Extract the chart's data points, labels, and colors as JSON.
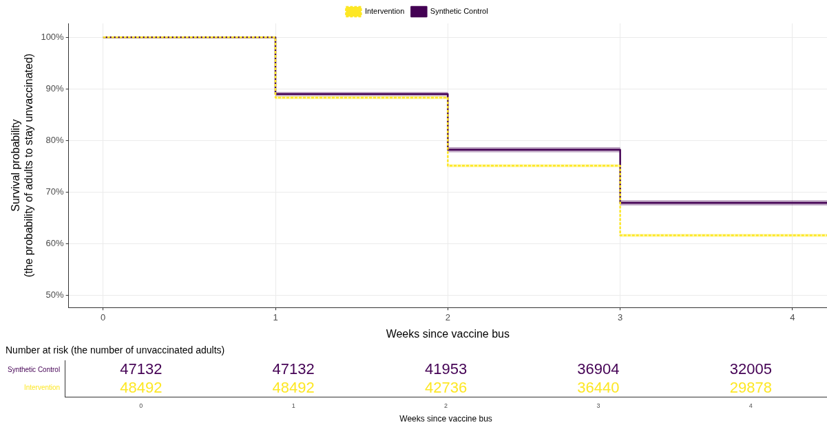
{
  "chart_data": [
    {
      "type": "step",
      "xlabel": "Weeks since vaccine bus",
      "ylabel": "Survival probability\n(the probability of adults to stay unvaccinated)",
      "x": [
        0,
        1,
        2,
        3,
        4.2
      ],
      "xlim": [
        -0.2,
        4.2
      ],
      "xticks": [
        0,
        1,
        2,
        3,
        4
      ],
      "ylim": [
        47.6,
        102.7
      ],
      "yticks": [
        {
          "value": 50,
          "label": "50%"
        },
        {
          "value": 60,
          "label": "60%"
        },
        {
          "value": 70,
          "label": "70%"
        },
        {
          "value": 80,
          "label": "80%"
        },
        {
          "value": 90,
          "label": "90%"
        },
        {
          "value": 100,
          "label": "100%"
        }
      ],
      "grid": true,
      "legend": "top",
      "series": [
        {
          "name": "Synthetic Control",
          "color": "#440154",
          "line_style": "solid",
          "values": [
            100,
            89.0,
            78.2,
            67.9,
            67.9
          ],
          "lower": [
            100,
            88.6,
            77.7,
            67.4,
            67.4
          ],
          "upper": [
            100,
            89.4,
            78.7,
            68.4,
            68.4
          ]
        },
        {
          "name": "Intervention",
          "color": "#fde725",
          "line_style": "dashed",
          "values": [
            100,
            88.3,
            75.1,
            61.6,
            61.6
          ],
          "lower": [
            100,
            88.0,
            74.8,
            61.3,
            61.3
          ],
          "upper": [
            100,
            88.6,
            75.4,
            61.9,
            61.9
          ]
        }
      ]
    },
    {
      "type": "heatmap",
      "title": "Number at risk (the number of unvaccinated adults)",
      "xlabel": "Weeks since vaccine bus",
      "categories": [
        "0",
        "1",
        "2",
        "3",
        "4"
      ],
      "y_categories": [
        "Synthetic Control",
        "Intervention"
      ],
      "colors": [
        "#440154",
        "#fde725"
      ],
      "data_labels": true,
      "cells": [
        [
          47132,
          47132,
          41953,
          36904,
          32005
        ],
        [
          48492,
          48492,
          42736,
          36440,
          29878
        ]
      ]
    }
  ]
}
